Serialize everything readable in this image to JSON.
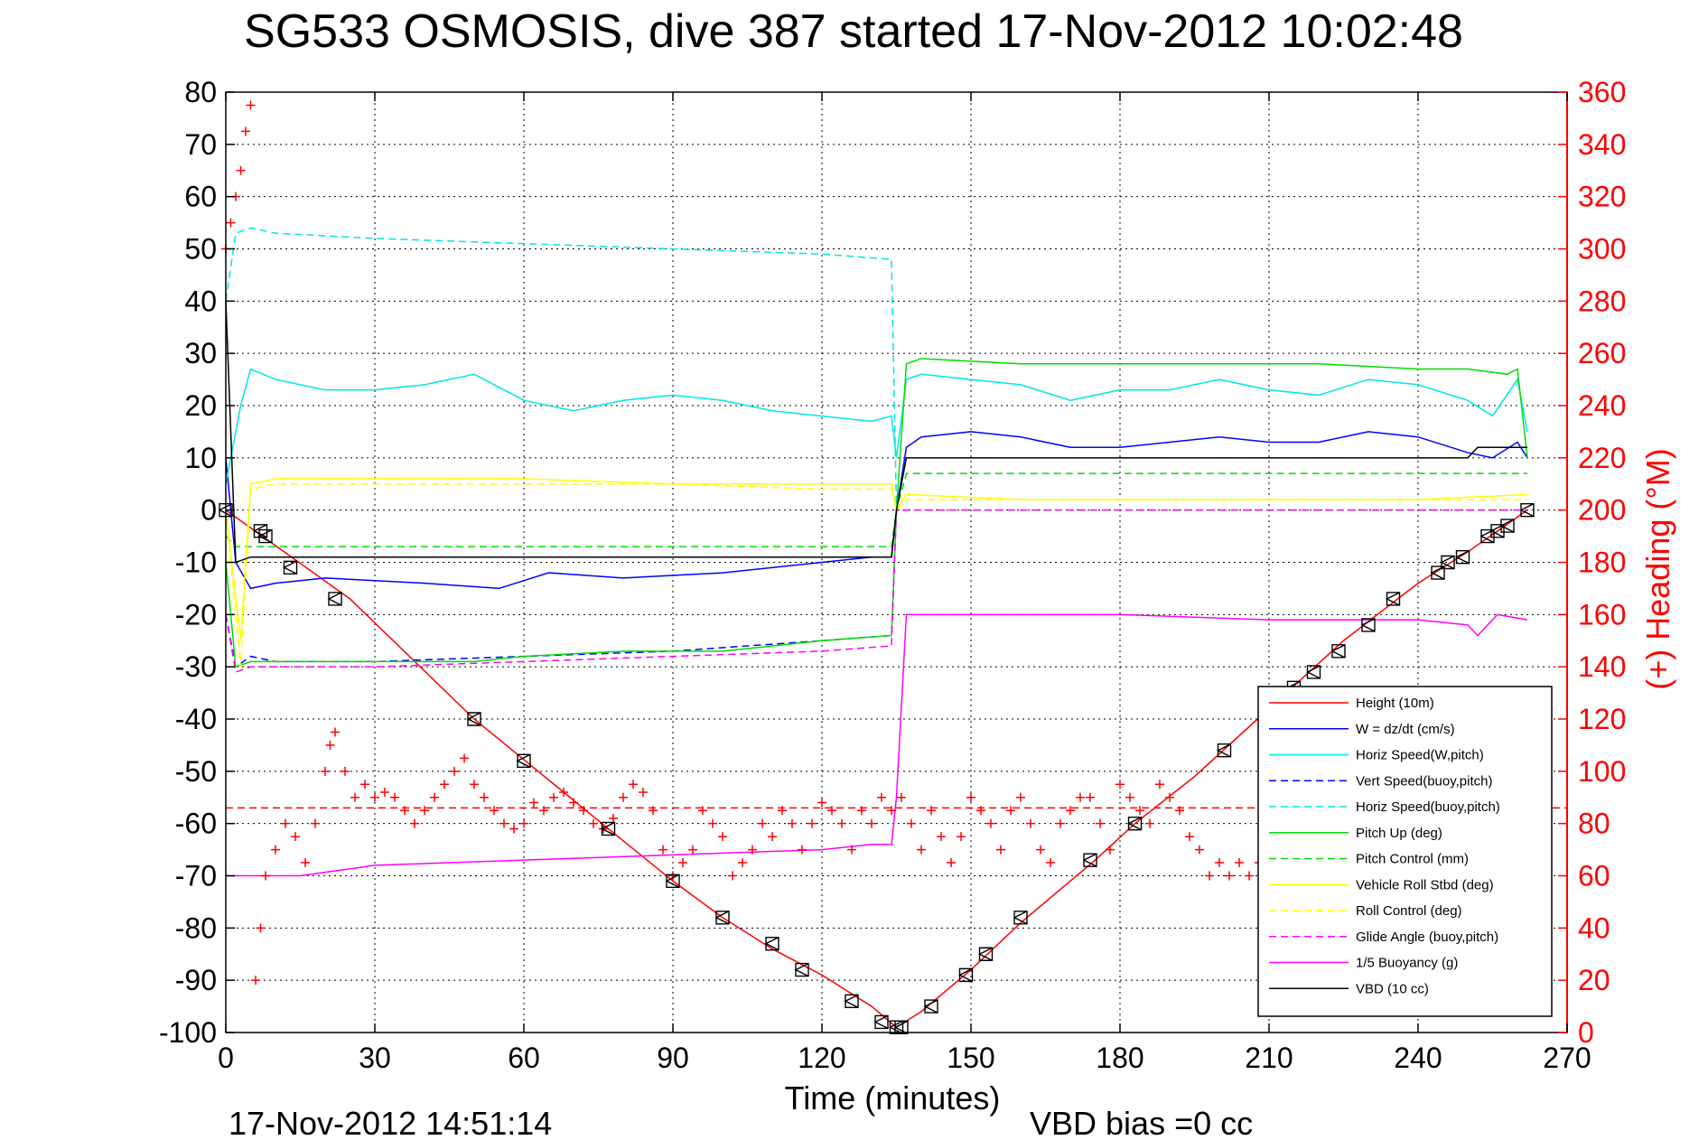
{
  "chart_data": {
    "type": "line",
    "title": "SG533 OSMOSIS, dive 387 started 17-Nov-2012 10:02:48",
    "xlabel": "Time (minutes)",
    "ylabel": "",
    "y2label": "(+) Heading (°M)",
    "xlim": [
      0,
      270
    ],
    "ylim": [
      -100,
      80
    ],
    "y2lim": [
      0,
      360
    ],
    "xticks": [
      "0",
      "30",
      "60",
      "90",
      "120",
      "150",
      "180",
      "210",
      "240",
      "270"
    ],
    "yticks": [
      "80",
      "70",
      "60",
      "50",
      "40",
      "30",
      "20",
      "10",
      "0",
      "-10",
      "-20",
      "-30",
      "-40",
      "-50",
      "-60",
      "-70",
      "-80",
      "-90",
      "-100"
    ],
    "y2ticks": [
      "360",
      "340",
      "320",
      "300",
      "280",
      "260",
      "240",
      "220",
      "200",
      "180",
      "160",
      "140",
      "120",
      "100",
      "80",
      "60",
      "40",
      "20",
      "0"
    ],
    "grid": true,
    "legend_placement": "bottom-right",
    "footer_left": "17-Nov-2012 14:51:14",
    "footer_right": "VBD bias =0 cc",
    "colors": {
      "heading_axis": "#ff0000",
      "axis": "#000000",
      "grid": "#000000"
    },
    "series": [
      {
        "name": "Height (10m)",
        "color": "#ff0000",
        "style": "solid",
        "x": [
          0,
          25,
          50,
          77,
          90,
          100,
          110,
          120,
          130,
          135,
          140,
          150,
          160,
          175,
          183,
          195,
          210,
          225,
          240,
          250,
          262
        ],
        "y": [
          0,
          -17,
          -40,
          -61,
          -71,
          -78,
          -84,
          -89,
          -95,
          -99,
          -96,
          -88,
          -79,
          -67,
          -60,
          -51,
          -38,
          -25,
          -14,
          -8,
          0
        ]
      },
      {
        "name": "W = dz/dt (cm/s)",
        "color": "#0000ff",
        "style": "solid",
        "x": [
          0,
          2,
          5,
          10,
          20,
          40,
          55,
          65,
          80,
          100,
          120,
          130,
          134,
          135,
          137,
          140,
          150,
          160,
          170,
          180,
          190,
          200,
          210,
          220,
          230,
          240,
          250,
          255,
          260,
          262
        ],
        "y": [
          10,
          -10,
          -15,
          -14,
          -13,
          -14,
          -15,
          -12,
          -13,
          -12,
          -10,
          -9,
          -9,
          0,
          12,
          14,
          15,
          14,
          12,
          12,
          13,
          14,
          13,
          13,
          15,
          14,
          11,
          10,
          13,
          10
        ]
      },
      {
        "name": "Horiz Speed(W,pitch)",
        "color": "#00e5e5",
        "style": "solid",
        "x": [
          0,
          3,
          5,
          10,
          20,
          30,
          40,
          50,
          60,
          70,
          80,
          90,
          100,
          110,
          120,
          130,
          134,
          135,
          137,
          140,
          150,
          160,
          170,
          180,
          190,
          200,
          210,
          220,
          230,
          240,
          250,
          255,
          260,
          262
        ],
        "y": [
          5,
          20,
          27,
          25,
          23,
          23,
          24,
          26,
          21,
          19,
          21,
          22,
          21,
          19,
          18,
          17,
          18,
          10,
          25,
          26,
          25,
          24,
          21,
          23,
          23,
          25,
          23,
          22,
          25,
          24,
          21,
          18,
          25,
          15
        ]
      },
      {
        "name": "Vert Speed(buoy,pitch)",
        "color": "#0000ff",
        "style": "dashed",
        "x": [
          0,
          2,
          5,
          10,
          30,
          60,
          90,
          120,
          134,
          135
        ],
        "y": [
          -20,
          -30,
          -28,
          -29,
          -29,
          -28,
          -27,
          -25,
          -24,
          0
        ]
      },
      {
        "name": "Horiz Speed(buoy,pitch)",
        "color": "#00e5e5",
        "style": "dashed",
        "x": [
          0,
          2,
          5,
          10,
          30,
          60,
          90,
          120,
          134,
          135
        ],
        "y": [
          40,
          53,
          54,
          53,
          52,
          51,
          50,
          49,
          48,
          0
        ]
      },
      {
        "name": "Pitch Up (deg)",
        "color": "#00dd00",
        "style": "solid",
        "x": [
          0,
          2,
          5,
          10,
          20,
          30,
          40,
          50,
          60,
          80,
          100,
          120,
          134,
          135,
          137,
          140,
          160,
          180,
          200,
          220,
          240,
          250,
          258,
          260,
          262
        ],
        "y": [
          -10,
          -30,
          -29,
          -29,
          -29,
          -29,
          -29,
          -29,
          -28,
          -27,
          -27,
          -25,
          -24,
          0,
          28,
          29,
          28,
          28,
          28,
          28,
          27,
          27,
          26,
          27,
          10
        ]
      },
      {
        "name": "Pitch Control (mm)",
        "color": "#00dd00",
        "style": "dashed",
        "x": [
          0,
          2,
          5,
          30,
          60,
          90,
          120,
          134,
          135,
          137,
          200,
          262
        ],
        "y": [
          -5,
          -7,
          -7,
          -7,
          -7,
          -7,
          -7,
          -7,
          0,
          7,
          7,
          7
        ]
      },
      {
        "name": "Vehicle Roll Stbd (deg)",
        "color": "#ffff00",
        "style": "solid",
        "x": [
          0,
          3,
          5,
          10,
          30,
          60,
          90,
          120,
          134,
          135,
          137,
          160,
          200,
          240,
          262
        ],
        "y": [
          0,
          -25,
          5,
          6,
          6,
          6,
          5,
          5,
          5,
          0,
          3,
          2,
          2,
          2,
          3
        ]
      },
      {
        "name": "Roll Control (deg)",
        "color": "#ffff00",
        "style": "dashed",
        "x": [
          0,
          3,
          5,
          10,
          30,
          60,
          90,
          120,
          134,
          135,
          137,
          160,
          200,
          240,
          262
        ],
        "y": [
          0,
          -30,
          4,
          5,
          5,
          5,
          5,
          4,
          4,
          0,
          2,
          2,
          2,
          2,
          2
        ]
      },
      {
        "name": "Glide Angle (buoy,pitch)",
        "color": "#ff00ff",
        "style": "dashed",
        "x": [
          0,
          2,
          5,
          30,
          60,
          90,
          120,
          134,
          135,
          137,
          262
        ],
        "y": [
          -20,
          -31,
          -30,
          -30,
          -29,
          -28,
          -27,
          -26,
          0,
          0,
          0
        ]
      },
      {
        "name": "1/5 Buoyancy (g)",
        "color": "#ff00ff",
        "style": "solid",
        "x": [
          0,
          2,
          5,
          15,
          30,
          60,
          90,
          120,
          130,
          134,
          135,
          137,
          150,
          180,
          210,
          240,
          250,
          252,
          256,
          262
        ],
        "y": [
          -70,
          -70,
          -70,
          -70,
          -68,
          -67,
          -66,
          -65,
          -64,
          -64,
          -55,
          -20,
          -20,
          -20,
          -21,
          -21,
          -22,
          -24,
          -20,
          -21
        ]
      },
      {
        "name": "VBD (10 cc)",
        "color": "#000000",
        "style": "solid",
        "x": [
          0,
          2,
          5,
          10,
          134,
          135,
          137,
          140,
          250,
          252,
          262
        ],
        "y": [
          40,
          -10,
          -9,
          -9,
          -9,
          0,
          10,
          10,
          10,
          12,
          12
        ]
      }
    ],
    "heading_points": {
      "marker": "+",
      "color": "#ff0000",
      "x": [
        0,
        1,
        2,
        3,
        4,
        5,
        6,
        7,
        8,
        10,
        12,
        14,
        16,
        18,
        20,
        21,
        22,
        24,
        26,
        28,
        30,
        32,
        34,
        36,
        38,
        40,
        42,
        44,
        46,
        48,
        50,
        52,
        54,
        56,
        58,
        60,
        62,
        64,
        66,
        68,
        70,
        72,
        74,
        76,
        78,
        80,
        82,
        84,
        86,
        88,
        90,
        92,
        94,
        96,
        98,
        100,
        102,
        104,
        106,
        108,
        110,
        112,
        114,
        116,
        118,
        120,
        122,
        124,
        126,
        128,
        130,
        132,
        134,
        136,
        138,
        140,
        142,
        144,
        146,
        148,
        150,
        152,
        154,
        156,
        158,
        160,
        162,
        164,
        166,
        168,
        170,
        172,
        174,
        176,
        178,
        180,
        182,
        184,
        186,
        188,
        190,
        192,
        194,
        196,
        198,
        200,
        202,
        204,
        206,
        208,
        210
      ],
      "y": [
        300,
        310,
        320,
        330,
        345,
        355,
        20,
        40,
        60,
        70,
        80,
        75,
        65,
        80,
        100,
        110,
        115,
        100,
        90,
        95,
        90,
        92,
        90,
        85,
        80,
        85,
        90,
        95,
        100,
        105,
        95,
        90,
        85,
        80,
        78,
        80,
        88,
        85,
        90,
        92,
        88,
        85,
        80,
        78,
        82,
        90,
        95,
        92,
        85,
        70,
        60,
        65,
        70,
        85,
        80,
        75,
        60,
        65,
        70,
        80,
        75,
        85,
        80,
        70,
        80,
        88,
        85,
        80,
        70,
        85,
        80,
        90,
        85,
        90,
        80,
        70,
        85,
        75,
        65,
        75,
        90,
        85,
        80,
        70,
        85,
        90,
        80,
        70,
        65,
        80,
        85,
        90,
        90,
        80,
        70,
        95,
        90,
        85,
        80,
        95,
        90,
        85,
        75,
        70,
        60,
        65,
        60,
        65,
        60,
        65,
        90
      ]
    },
    "heading_mean": 86,
    "height_markers": {
      "marker": "triangle-square",
      "color": "#000000",
      "x": [
        0,
        7,
        8,
        13,
        22,
        50,
        60,
        77,
        90,
        100,
        110,
        116,
        126,
        132,
        135,
        136,
        142,
        149,
        153,
        160,
        174,
        183,
        201,
        215,
        219,
        224,
        230,
        235,
        244,
        246,
        249,
        254,
        256,
        258,
        262
      ],
      "y": [
        0,
        -4,
        -5,
        -11,
        -17,
        -40,
        -48,
        -61,
        -71,
        -78,
        -83,
        -88,
        -94,
        -98,
        -99,
        -99,
        -95,
        -89,
        -85,
        -78,
        -67,
        -60,
        -46,
        -34,
        -31,
        -27,
        -22,
        -17,
        -12,
        -10,
        -9,
        -5,
        -4,
        -3,
        0
      ]
    }
  }
}
